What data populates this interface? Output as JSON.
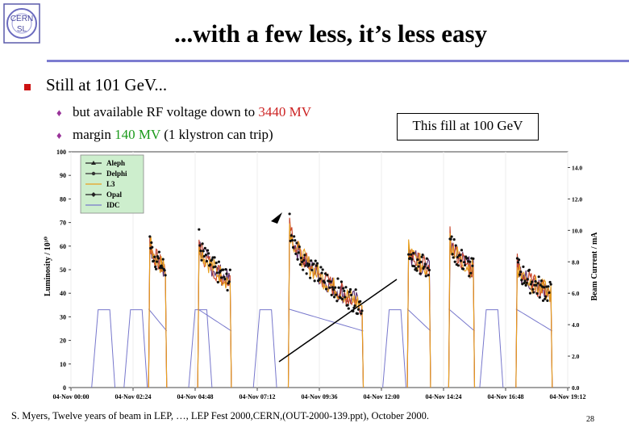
{
  "logo": {
    "top": "CERN",
    "bottom": "SL"
  },
  "title": "...with a few less, it’s less easy",
  "main_bullet": "Still at 101 GeV...",
  "sub_bullets": [
    {
      "pre": "but available RF voltage down to ",
      "highlight": "3440 MV",
      "post": "",
      "color": "#cc2222"
    },
    {
      "pre": "margin ",
      "highlight": "140 MV",
      "post": " (1 klystron can trip)",
      "color": "#1a9a1a"
    }
  ],
  "callout": "This fill at 100 GeV",
  "footer": "S. Myers, Twelve years of beam in LEP, …,  LEP Fest 2000,CERN,(OUT-2000-139.ppt), October 2000.",
  "page_number": "28",
  "chart_data": {
    "type": "line",
    "ylabel": "Luminosity / 10³⁰",
    "y2label": "Beam Current / mA",
    "ylim": [
      0,
      100
    ],
    "y2lim": [
      0,
      15
    ],
    "yticks": [
      "0",
      "10",
      "20",
      "30",
      "40",
      "50",
      "60",
      "70",
      "80",
      "90",
      "100"
    ],
    "y2ticks": [
      "0.0",
      "2.0",
      "4.0",
      "6.0",
      "8.0",
      "10.0",
      "12.0",
      "14.0"
    ],
    "xlim": [
      0,
      19.2
    ],
    "xticks": [
      "04-Nov 00:00",
      "04-Nov 02:24",
      "04-Nov 04:48",
      "04-Nov 07:12",
      "04-Nov 09:36",
      "04-Nov 12:00",
      "04-Nov 14:24",
      "04-Nov 16:48",
      "04-Nov 19:12"
    ],
    "legend_position": "top-left",
    "series": [
      {
        "name": "Aleph",
        "color": "#222222",
        "marker": "triangle"
      },
      {
        "name": "Delphi",
        "color": "#333333",
        "marker": "circle"
      },
      {
        "name": "L3",
        "color": "#e8a020",
        "marker": "line"
      },
      {
        "name": "Opal",
        "color": "#222222",
        "marker": "diamond"
      },
      {
        "name": "IDC",
        "color": "#7777cc",
        "marker": "line"
      }
    ],
    "fills": [
      {
        "start": 3.0,
        "end": 3.7,
        "peak": 63,
        "end_val": 50
      },
      {
        "start": 4.9,
        "end": 6.2,
        "peak": 63,
        "end_val": 45
      },
      {
        "start": 8.4,
        "end": 11.3,
        "peak": 70,
        "end_val": 35
      },
      {
        "start": 13.0,
        "end": 13.9,
        "peak": 60,
        "end_val": 50
      },
      {
        "start": 14.6,
        "end": 15.6,
        "peak": 64,
        "end_val": 50
      },
      {
        "start": 17.2,
        "end": 18.6,
        "peak": 53,
        "end_val": 40
      }
    ]
  }
}
